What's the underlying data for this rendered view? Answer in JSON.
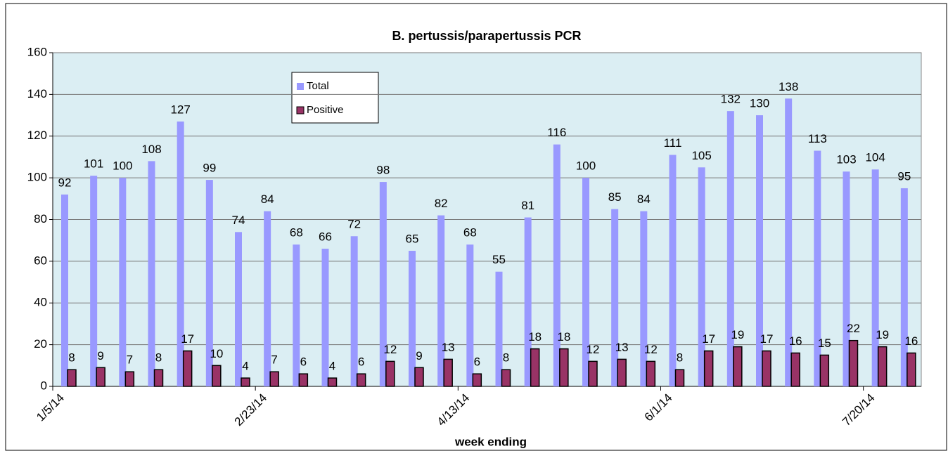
{
  "chart_data": {
    "type": "bar",
    "title": "B. pertussis/parapertussis PCR",
    "x_label": "week ending",
    "categories": [
      "1/5/14",
      null,
      null,
      null,
      null,
      null,
      null,
      "2/23/14",
      null,
      null,
      null,
      null,
      null,
      null,
      "4/13/14",
      null,
      null,
      null,
      null,
      null,
      null,
      "6/1/14",
      null,
      null,
      null,
      null,
      null,
      null,
      "7/20/14",
      null
    ],
    "series": [
      {
        "name": "Total",
        "color": "#9999ff",
        "values": [
          92,
          101,
          100,
          108,
          127,
          99,
          74,
          84,
          68,
          66,
          72,
          98,
          65,
          82,
          68,
          55,
          81,
          116,
          100,
          85,
          84,
          111,
          105,
          132,
          130,
          138,
          113,
          103,
          104,
          95
        ]
      },
      {
        "name": "Positive",
        "color": "#993366",
        "values": [
          8,
          9,
          7,
          8,
          17,
          10,
          4,
          7,
          6,
          4,
          6,
          12,
          9,
          13,
          6,
          8,
          18,
          18,
          12,
          13,
          12,
          8,
          17,
          19,
          17,
          16,
          15,
          22,
          19,
          16
        ]
      }
    ],
    "ylim": [
      0,
      160
    ],
    "yticks": [
      0,
      20,
      40,
      60,
      80,
      100,
      120,
      140,
      160
    ],
    "grid": true
  }
}
